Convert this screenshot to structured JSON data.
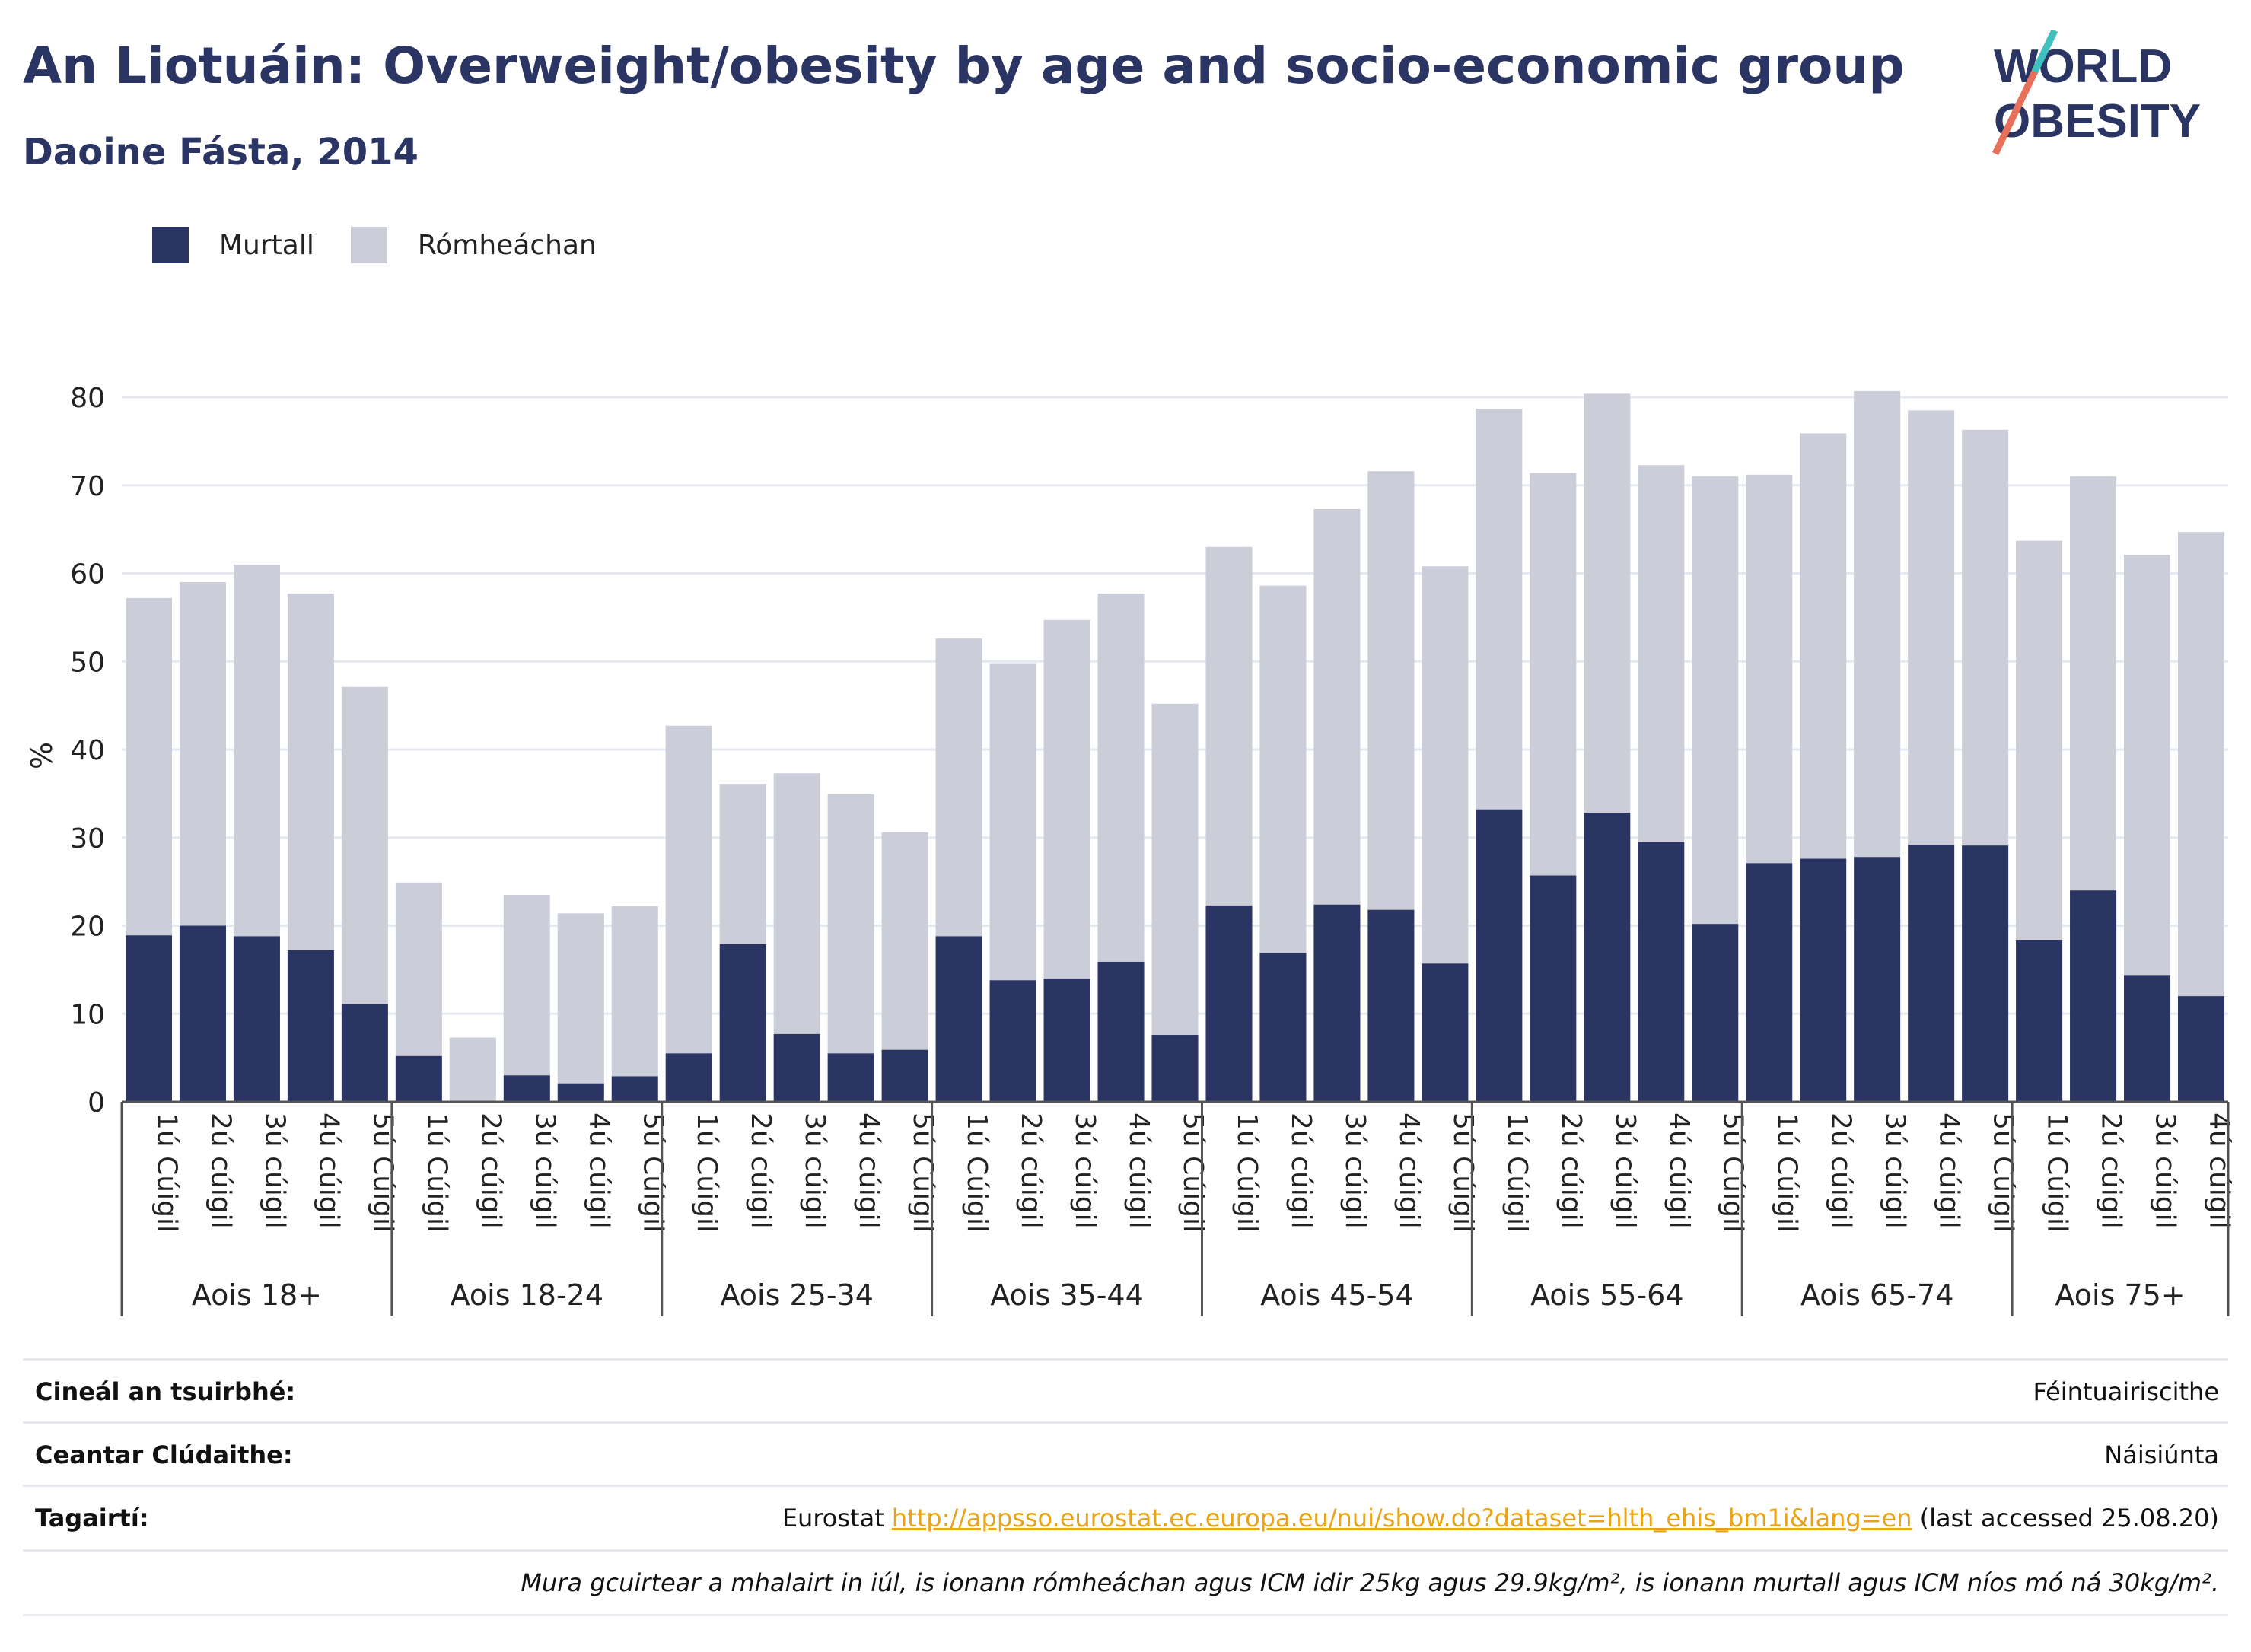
{
  "header": {
    "title": "An Liotuáin: Overweight/obesity by age and socio-economic group",
    "subtitle": "Daoine Fásta, 2014"
  },
  "logo": {
    "line1": "WORLD",
    "line2": "OBESITY"
  },
  "colors": {
    "obese": "#2b3563",
    "overweight": "#cbcdd9",
    "title": "#2b3563",
    "link": "#e8a317"
  },
  "legend": {
    "obese": "Murtall",
    "overweight": "Rómheáchan"
  },
  "chart_data": {
    "type": "bar",
    "stacked": true,
    "ylabel": "%",
    "ylim": [
      0,
      80
    ],
    "yticks": [
      0,
      10,
      20,
      30,
      40,
      50,
      60,
      70,
      80
    ],
    "grid": true,
    "legend_position": "top-left",
    "groups": [
      {
        "label": "Aois 18+",
        "categories": [
          "1ú Cúigil",
          "2ú cúigil",
          "3ú cúigil",
          "4ú cúigil",
          "5ú Cúigil"
        ],
        "obese": [
          18.9,
          20.0,
          18.8,
          17.2,
          11.1
        ],
        "total": [
          57.2,
          59.0,
          61.0,
          57.7,
          47.1
        ]
      },
      {
        "label": "Aois 18-24",
        "categories": [
          "1ú Cúigil",
          "2ú cúigil",
          "3ú cúigil",
          "4ú cúigil",
          "5ú Cúigil"
        ],
        "obese": [
          5.2,
          0.0,
          3.0,
          2.1,
          2.9
        ],
        "total": [
          24.9,
          7.3,
          23.5,
          21.4,
          22.2
        ]
      },
      {
        "label": "Aois 25-34",
        "categories": [
          "1ú Cúigil",
          "2ú cúigil",
          "3ú cúigil",
          "4ú cúigil",
          "5ú Cúigil"
        ],
        "obese": [
          5.5,
          17.9,
          7.7,
          5.5,
          5.9
        ],
        "total": [
          42.7,
          36.1,
          37.3,
          34.9,
          30.6
        ]
      },
      {
        "label": "Aois 35-44",
        "categories": [
          "1ú Cúigil",
          "2ú cúigil",
          "3ú cúigil",
          "4ú cúigil",
          "5ú Cúigil"
        ],
        "obese": [
          18.8,
          13.8,
          14.0,
          15.9,
          7.6
        ],
        "total": [
          52.6,
          49.8,
          54.7,
          57.7,
          45.2
        ]
      },
      {
        "label": "Aois 45-54",
        "categories": [
          "1ú Cúigil",
          "2ú cúigil",
          "3ú cúigil",
          "4ú cúigil",
          "5ú Cúigil"
        ],
        "obese": [
          22.3,
          16.9,
          22.4,
          21.8,
          15.7
        ],
        "total": [
          63.0,
          58.6,
          67.3,
          71.6,
          60.8
        ]
      },
      {
        "label": "Aois 55-64",
        "categories": [
          "1ú Cúigil",
          "2ú cúigil",
          "3ú cúigil",
          "4ú cúigil",
          "5ú Cúigil"
        ],
        "obese": [
          33.2,
          25.7,
          32.8,
          29.5,
          20.2
        ],
        "total": [
          78.7,
          71.4,
          80.4,
          72.3,
          71.0
        ]
      },
      {
        "label": "Aois 65-74",
        "categories": [
          "1ú Cúigil",
          "2ú cúigil",
          "3ú cúigil",
          "4ú cúigil",
          "5ú Cúigil"
        ],
        "obese": [
          27.1,
          27.6,
          27.8,
          29.2,
          29.1
        ],
        "total": [
          71.2,
          75.9,
          80.7,
          78.5,
          76.3
        ]
      },
      {
        "label": "Aois 75+",
        "categories": [
          "1ú Cúigil",
          "2ú cúigil",
          "3ú cúigil",
          "4ú cúigil"
        ],
        "obese": [
          18.4,
          24.0,
          14.4,
          12.0
        ],
        "total": [
          63.7,
          71.0,
          62.1,
          64.7
        ]
      }
    ]
  },
  "footer": {
    "survey_label": "Cineál an tsuirbhé:",
    "survey_value": "Féintuairiscithe",
    "coverage_label": "Ceantar Clúdaithe:",
    "coverage_value": "Náisiúnta",
    "refs_label": "Tagairtí:",
    "refs_prefix": "Eurostat ",
    "refs_link": "http://appsso.eurostat.ec.europa.eu/nui/show.do?dataset=hlth_ehis_bm1i&lang=en",
    "refs_suffix": " (last accessed 25.08.20)",
    "note": "Mura gcuirtear a mhalairt in iúl, is ionann rómheáchan agus ICM idir 25kg agus 29.9kg/m², is ionann murtall agus ICM níos mó ná 30kg/m²."
  }
}
